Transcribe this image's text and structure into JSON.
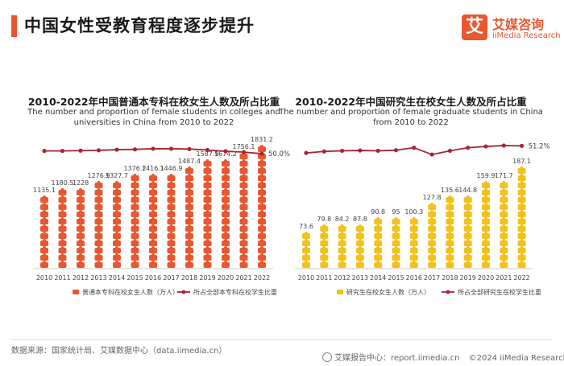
{
  "page": {
    "title": "中国女性受教育程度逐步提升",
    "accent_color": "#e8572f"
  },
  "logo": {
    "mark": "艾",
    "cn": "艾媒咨询",
    "en": "iiMedia Research",
    "color": "#e8572f"
  },
  "footer": {
    "source": "数据来源：国家统计局、艾媒数据中心（data.iimedia.cn）",
    "platform": "艾媒报告中心：report.iimedia.cn",
    "copyright": "©2024  iiMedia Research  Inc"
  },
  "chart_data": [
    {
      "type": "bar",
      "title": "2010-2022年中国普通本专科在校女生人数及所占比重",
      "subtitle_lines": [
        "The number and proportion of female students in colleges and",
        "universities in China from 2010 to 2022"
      ],
      "categories": [
        "2010",
        "2011",
        "2012",
        "2013",
        "2014",
        "2015",
        "2016",
        "2017",
        "2018",
        "2019",
        "2020",
        "2021",
        "2022"
      ],
      "series": [
        {
          "name": "普通本专科在校女生人数（万人）",
          "kind": "bar",
          "color": "#e8572f",
          "values": [
            1135.1,
            1180.5,
            1228,
            1276.9,
            1327.7,
            1376.2,
            1416.1,
            1446.9,
            1487.4,
            1587.9,
            1674.2,
            1756.1,
            1831.2
          ],
          "labels": [
            "1135.1",
            "1180.5",
            "1228",
            "1276.9",
            "1327.7",
            "1376.2",
            "1416.1",
            "1446.9",
            "1487.4",
            "1587.9",
            "1674.2",
            "1756.1",
            "1831.2"
          ]
        },
        {
          "name": "所占全部本专科在校学生比重",
          "kind": "line",
          "color": "#a8252f",
          "values": [
            50.9,
            50.9,
            51.0,
            51.1,
            51.3,
            51.4,
            51.6,
            51.6,
            51.5,
            51.2,
            50.8,
            50.5,
            50.0
          ],
          "end_label": "50.0%"
        }
      ],
      "ylim": [
        0,
        2000
      ]
    },
    {
      "type": "bar",
      "title": "2010-2022年中国研究生在校女生人数及所占比重",
      "subtitle_lines": [
        "The number and proportion of female graduate students in China",
        "from 2010 to 2022"
      ],
      "categories": [
        "2010",
        "2011",
        "2012",
        "2013",
        "2014",
        "2015",
        "2016",
        "2017",
        "2018",
        "2019",
        "2020",
        "2021",
        "2022"
      ],
      "series": [
        {
          "name": "研究生在校女生人数（万人）",
          "kind": "bar",
          "color": "#f2c11b",
          "values": [
            73.6,
            79.8,
            84.2,
            87.8,
            90.8,
            95,
            100.3,
            127.8,
            135.6,
            144.8,
            159.9,
            171.7,
            187.1
          ],
          "labels": [
            "73.6",
            "79.8",
            "84.2",
            "87.8",
            "90.8",
            "95",
            "100.3",
            "127.8",
            "135.6",
            "144.8",
            "159.9",
            "171.7",
            "187.1"
          ]
        },
        {
          "name": "所占全部研究生在校学生比重",
          "kind": "line",
          "color": "#a8252f",
          "values": [
            48.9,
            49.4,
            49.6,
            49.7,
            49.6,
            49.8,
            50.6,
            48.4,
            49.6,
            50.6,
            51.0,
            51.3,
            51.2
          ],
          "end_label": "51.2%"
        }
      ],
      "ylim": [
        0,
        200
      ]
    }
  ]
}
